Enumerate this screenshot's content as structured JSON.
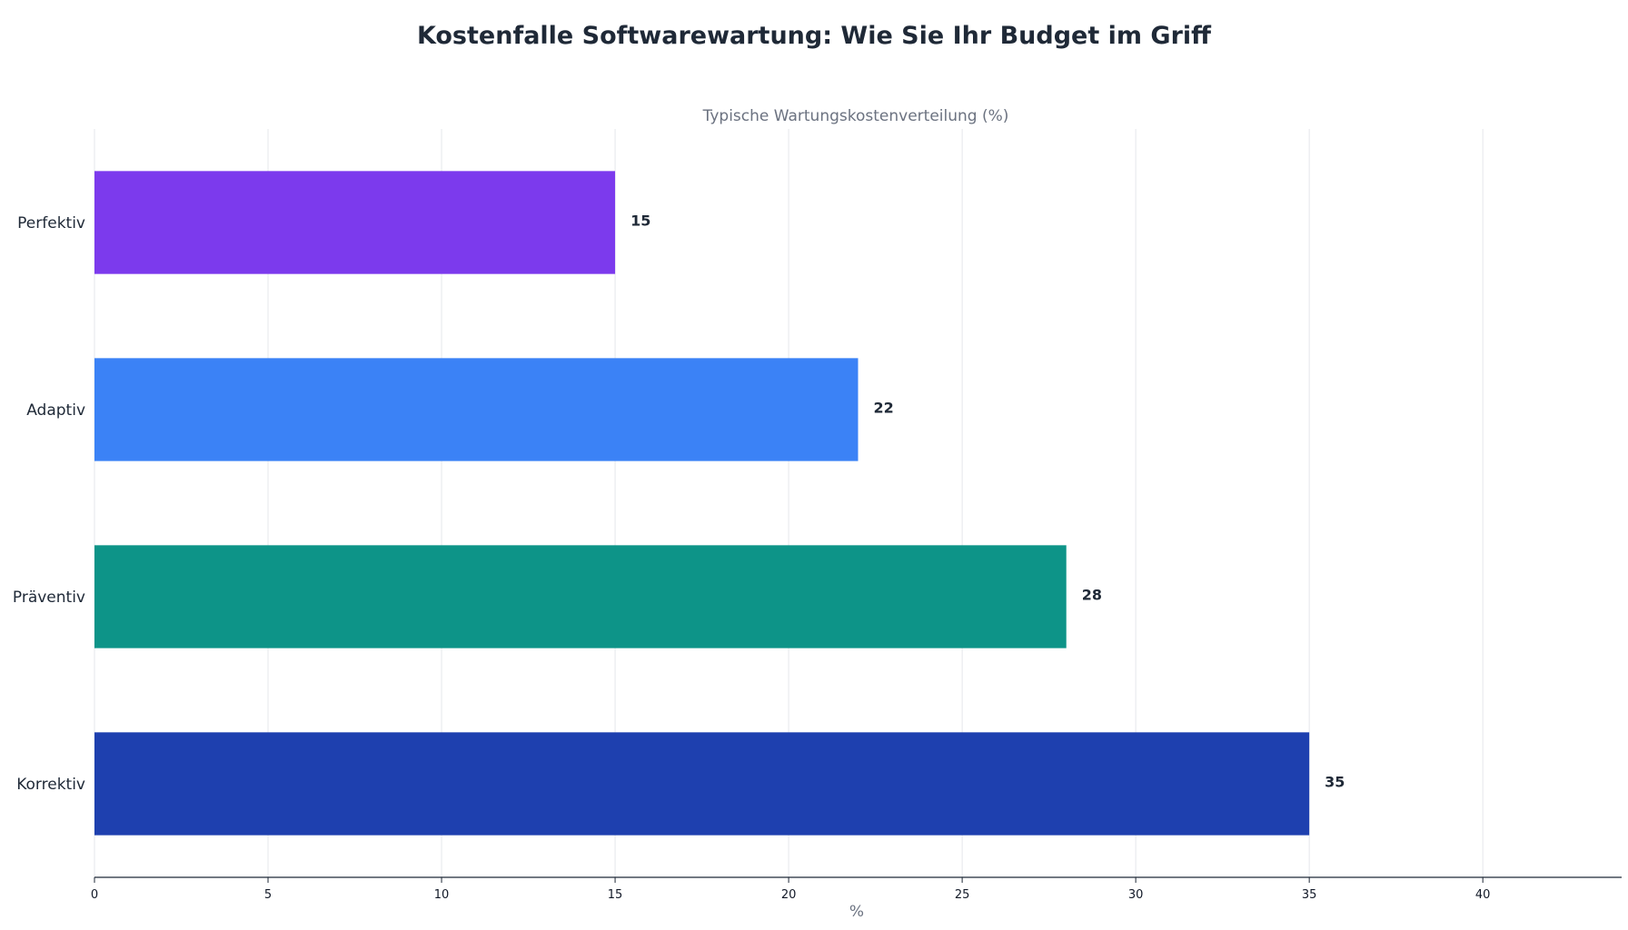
{
  "chart_data": {
    "type": "bar",
    "orientation": "horizontal",
    "title": "Kostenfalle Softwarewartung: Wie Sie Ihr Budget im Griff",
    "subtitle": "Typische Wartungskostenverteilung (%)",
    "xlabel": "%",
    "ylabel": "",
    "xlim": [
      0,
      44
    ],
    "xticks": [
      0,
      5,
      10,
      15,
      20,
      25,
      30,
      35,
      40
    ],
    "grid": true,
    "legend": "none",
    "categories": [
      "Korrektiv",
      "Präventiv",
      "Adaptiv",
      "Perfektiv"
    ],
    "values": [
      35,
      28,
      22,
      15
    ],
    "colors": [
      "#1e40af",
      "#0d9488",
      "#3b82f6",
      "#7c3aed"
    ]
  }
}
